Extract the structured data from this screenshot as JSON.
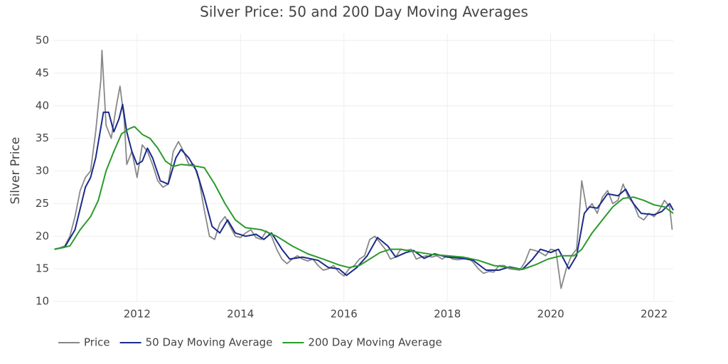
{
  "chart_data": {
    "type": "line",
    "title": "Silver Price: 50 and 200 Day Moving Averages",
    "ylabel": "Silver Price",
    "xlim": [
      2010.38,
      2022.37
    ],
    "xticks": [
      2012,
      2014,
      2016,
      2018,
      2020,
      2022
    ],
    "ylim": [
      10,
      50
    ],
    "yticks": [
      10,
      15,
      20,
      25,
      30,
      35,
      40,
      45,
      50
    ],
    "grid": true,
    "legend": "bottom",
    "series": [
      {
        "name": "Price",
        "color": "#888888",
        "x": [
          2010.4,
          2010.5,
          2010.6,
          2010.7,
          2010.8,
          2010.9,
          2011.0,
          2011.1,
          2011.2,
          2011.3,
          2011.32,
          2011.4,
          2011.5,
          2011.6,
          2011.67,
          2011.75,
          2011.8,
          2011.9,
          2012.0,
          2012.1,
          2012.2,
          2012.3,
          2012.4,
          2012.5,
          2012.6,
          2012.7,
          2012.8,
          2012.9,
          2013.0,
          2013.1,
          2013.2,
          2013.3,
          2013.4,
          2013.5,
          2013.6,
          2013.7,
          2013.8,
          2013.9,
          2014.0,
          2014.1,
          2014.2,
          2014.3,
          2014.4,
          2014.5,
          2014.6,
          2014.7,
          2014.8,
          2014.9,
          2015.0,
          2015.1,
          2015.2,
          2015.3,
          2015.4,
          2015.5,
          2015.6,
          2015.7,
          2015.8,
          2015.9,
          2016.0,
          2016.1,
          2016.2,
          2016.3,
          2016.4,
          2016.5,
          2016.6,
          2016.7,
          2016.8,
          2016.9,
          2017.0,
          2017.1,
          2017.2,
          2017.3,
          2017.4,
          2017.5,
          2017.6,
          2017.7,
          2017.8,
          2017.9,
          2018.0,
          2018.1,
          2018.2,
          2018.3,
          2018.4,
          2018.5,
          2018.6,
          2018.7,
          2018.8,
          2018.9,
          2019.0,
          2019.1,
          2019.2,
          2019.3,
          2019.4,
          2019.5,
          2019.6,
          2019.7,
          2019.8,
          2019.9,
          2020.0,
          2020.1,
          2020.2,
          2020.3,
          2020.4,
          2020.5,
          2020.55,
          2020.6,
          2020.7,
          2020.8,
          2020.9,
          2021.0,
          2021.1,
          2021.2,
          2021.3,
          2021.4,
          2021.5,
          2021.6,
          2021.7,
          2021.8,
          2021.9,
          2022.0,
          2022.1,
          2022.2,
          2022.3,
          2022.35
        ],
        "values": [
          18,
          18.2,
          18.5,
          20,
          23,
          27,
          29,
          30,
          36,
          44,
          48.5,
          37,
          35,
          40,
          43,
          38,
          31,
          33,
          29,
          34,
          33,
          31,
          28.5,
          27.5,
          28,
          33,
          34.5,
          33,
          31,
          31,
          28.5,
          24,
          20,
          19.5,
          22,
          23,
          21.5,
          20,
          19.8,
          20.5,
          21,
          19.8,
          19.5,
          20.8,
          20,
          18,
          16.5,
          15.8,
          16.5,
          17,
          16.5,
          16.2,
          16.5,
          15.5,
          14.8,
          15,
          15.5,
          14.5,
          13.9,
          15,
          15.5,
          16.5,
          17,
          19.5,
          20,
          19,
          18,
          16.5,
          16.8,
          18,
          17.8,
          18,
          16.5,
          16.8,
          17,
          16.8,
          17,
          16.5,
          17,
          16.5,
          16.4,
          16.5,
          16.7,
          16,
          15,
          14.3,
          14.6,
          14.5,
          15.5,
          15.5,
          15,
          14.9,
          14.8,
          16,
          18,
          17.8,
          17.5,
          17,
          18,
          17.8,
          12,
          15,
          17,
          18,
          23,
          28.5,
          24,
          25,
          23.5,
          26,
          27,
          25,
          25.5,
          28,
          26,
          25,
          23,
          22.5,
          23.5,
          23,
          24,
          25.5,
          24.5,
          21
        ]
      },
      {
        "name": "50 Day Moving Average",
        "color": "#1a2a8a",
        "x": [
          2010.4,
          2010.6,
          2010.8,
          2011.0,
          2011.1,
          2011.2,
          2011.35,
          2011.45,
          2011.55,
          2011.65,
          2011.72,
          2011.8,
          2011.9,
          2012.0,
          2012.1,
          2012.2,
          2012.3,
          2012.45,
          2012.6,
          2012.75,
          2012.85,
          2013.0,
          2013.15,
          2013.3,
          2013.45,
          2013.6,
          2013.75,
          2013.9,
          2014.1,
          2014.3,
          2014.45,
          2014.6,
          2014.8,
          2014.95,
          2015.2,
          2015.5,
          2015.7,
          2015.9,
          2016.05,
          2016.25,
          2016.45,
          2016.65,
          2016.85,
          2017.0,
          2017.2,
          2017.35,
          2017.55,
          2017.75,
          2018.0,
          2018.3,
          2018.5,
          2018.75,
          2019.0,
          2019.2,
          2019.45,
          2019.65,
          2019.8,
          2020.0,
          2020.15,
          2020.35,
          2020.5,
          2020.65,
          2020.75,
          2020.9,
          2021.1,
          2021.3,
          2021.45,
          2021.6,
          2021.75,
          2022.0,
          2022.15,
          2022.3,
          2022.37
        ],
        "values": [
          18,
          18.3,
          21,
          27.5,
          29,
          32,
          39,
          39,
          36,
          38,
          40.2,
          36,
          33,
          31,
          31.5,
          33.5,
          32,
          28.5,
          28,
          32,
          33.3,
          32,
          30,
          26,
          21.5,
          20.5,
          22.5,
          20.5,
          20,
          20.3,
          19.5,
          20.5,
          18,
          16.5,
          16.8,
          16.3,
          15.2,
          15,
          14,
          15.2,
          17,
          19.8,
          18.5,
          16.8,
          17.5,
          17.8,
          16.6,
          17.3,
          16.8,
          16.6,
          16.3,
          14.8,
          14.8,
          15.3,
          14.9,
          16.5,
          18,
          17.5,
          18,
          15,
          17,
          23.5,
          24.5,
          24.3,
          26.5,
          26.2,
          27.2,
          25,
          23.5,
          23.3,
          23.8,
          25,
          24
        ]
      },
      {
        "name": "200 Day Moving Average",
        "color": "#2a9a2a",
        "x": [
          2010.4,
          2010.7,
          2010.9,
          2011.1,
          2011.25,
          2011.4,
          2011.55,
          2011.7,
          2011.85,
          2011.95,
          2012.1,
          2012.25,
          2012.4,
          2012.55,
          2012.7,
          2012.85,
          2013.1,
          2013.3,
          2013.5,
          2013.7,
          2013.9,
          2014.1,
          2014.4,
          2014.7,
          2015.0,
          2015.3,
          2015.6,
          2015.9,
          2016.1,
          2016.3,
          2016.5,
          2016.7,
          2016.9,
          2017.1,
          2017.4,
          2017.7,
          2018.0,
          2018.3,
          2018.6,
          2018.9,
          2019.2,
          2019.45,
          2019.7,
          2019.95,
          2020.2,
          2020.45,
          2020.6,
          2020.8,
          2021.0,
          2021.2,
          2021.4,
          2021.6,
          2021.8,
          2022.0,
          2022.2,
          2022.37
        ],
        "values": [
          18,
          18.5,
          21,
          23,
          25.5,
          30,
          33,
          35.7,
          36.5,
          36.8,
          35.6,
          35,
          33.5,
          31.5,
          30.7,
          31,
          30.8,
          30.5,
          28,
          25,
          22.5,
          21.3,
          21,
          20,
          18.5,
          17.3,
          16.5,
          15.6,
          15.2,
          15.5,
          16.5,
          17.5,
          18,
          18,
          17.6,
          17.2,
          17,
          16.8,
          16.3,
          15.5,
          15.2,
          14.9,
          15.6,
          16.5,
          17,
          17,
          18,
          20.5,
          22.5,
          24.5,
          25.8,
          26,
          25.5,
          24.8,
          24.5,
          23.5
        ]
      }
    ]
  }
}
